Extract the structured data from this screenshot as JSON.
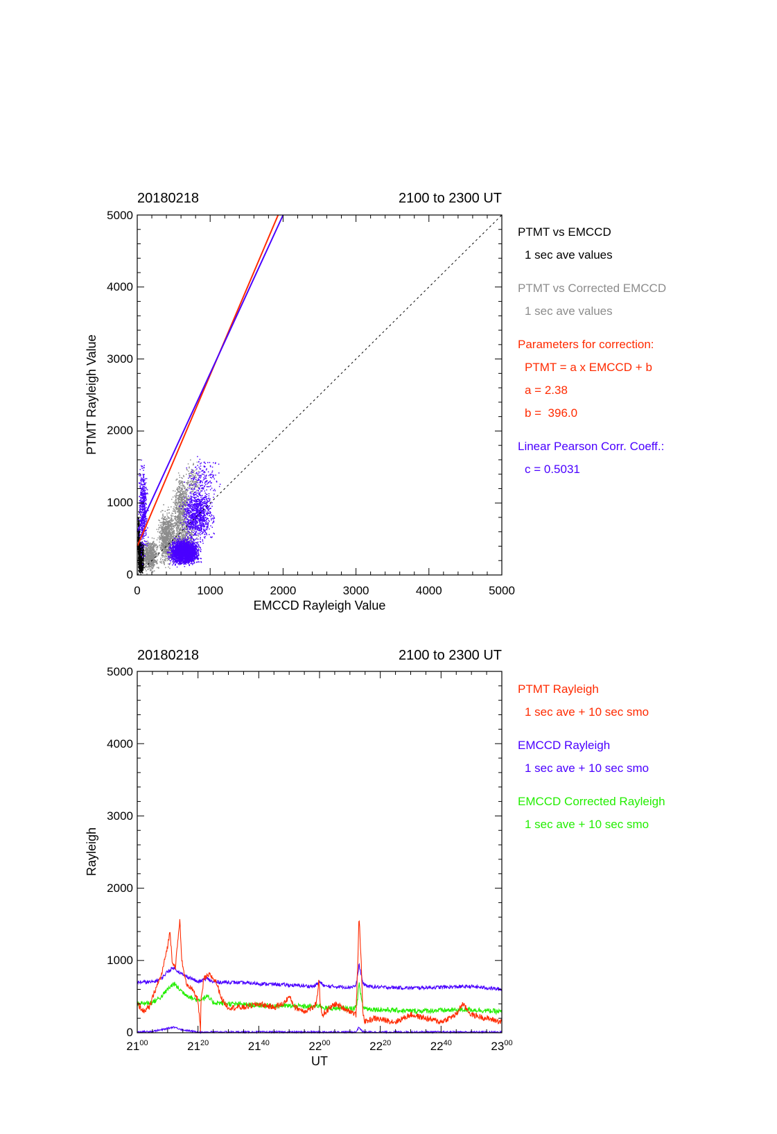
{
  "colors": {
    "black": "#000000",
    "gray": "#8c8c8c",
    "red": "#ff2a00",
    "blue": "#4a00ff",
    "green": "#22ee00"
  },
  "chart_data": [
    {
      "type": "scatter",
      "date": "20180218",
      "time_range": "2100 to 2300 UT",
      "xlabel": "EMCCD Rayleigh Value",
      "ylabel": "PTMT Rayleigh Value",
      "xlim": [
        0,
        5000
      ],
      "ylim": [
        0,
        5000
      ],
      "xticks": [
        "0",
        "1000",
        "2000",
        "3000",
        "4000",
        "5000"
      ],
      "yticks": [
        "0",
        "1000",
        "2000",
        "3000",
        "4000",
        "5000"
      ],
      "legend": [
        {
          "text": "PTMT vs EMCCD",
          "color": "black"
        },
        {
          "text": "1 sec ave values",
          "color": "black"
        },
        {
          "text": "PTMT vs Corrected EMCCD",
          "color": "gray"
        },
        {
          "text": "1 sec ave values",
          "color": "gray"
        },
        {
          "text": "Parameters for correction:",
          "color": "red"
        },
        {
          "text": "PTMT = a x EMCCD + b",
          "color": "red"
        },
        {
          "text": "a = 2.38",
          "color": "red"
        },
        {
          "text": "b =  396.0",
          "color": "red"
        },
        {
          "text": "Linear Pearson Corr. Coeff.:",
          "color": "blue"
        },
        {
          "text": "c = 0.5031",
          "color": "blue"
        }
      ],
      "fit_lines": [
        {
          "color": "red",
          "x": [
            0,
            1932
          ],
          "y": [
            396.0,
            5000
          ]
        },
        {
          "color": "blue",
          "x": [
            0,
            2000
          ],
          "y": [
            600,
            5000
          ]
        },
        {
          "color": "black",
          "dashed": true,
          "x": [
            0,
            5000
          ],
          "y": [
            0,
            5000
          ]
        }
      ],
      "series": [
        {
          "color": "black",
          "clusters": [
            {
              "x": [
                0,
                90
              ],
              "y": [
                0,
                500
              ],
              "n": 1500
            },
            {
              "x": [
                0,
                30
              ],
              "y": [
                100,
                950
              ],
              "n": 250
            }
          ]
        },
        {
          "color": "gray",
          "clusters": [
            {
              "x": [
                50,
                300
              ],
              "y": [
                0,
                550
              ],
              "n": 700
            },
            {
              "x": [
                250,
                550
              ],
              "y": [
                50,
                1000
              ],
              "n": 900
            },
            {
              "x": [
                450,
                750
              ],
              "y": [
                400,
                1500
              ],
              "n": 700
            },
            {
              "x": [
                350,
                900
              ],
              "y": [
                100,
                900
              ],
              "n": 600
            },
            {
              "x": [
                600,
                900
              ],
              "y": [
                1000,
                1650
              ],
              "n": 120
            }
          ]
        },
        {
          "color": "blue",
          "clusters": [
            {
              "x": [
                0,
                150
              ],
              "y": [
                100,
                1700
              ],
              "n": 550
            },
            {
              "x": [
                380,
                900
              ],
              "y": [
                100,
                550
              ],
              "n": 2600
            },
            {
              "x": [
                550,
                1100
              ],
              "y": [
                400,
                1300
              ],
              "n": 1000
            },
            {
              "x": [
                600,
                1200
              ],
              "y": [
                1000,
                1700
              ],
              "n": 180
            }
          ]
        }
      ]
    },
    {
      "type": "line",
      "date": "20180218",
      "time_range": "2100 to 2300 UT",
      "xlabel": "UT",
      "ylabel": "Rayleigh",
      "xlim": [
        0,
        120
      ],
      "ylim": [
        0,
        5000
      ],
      "xticks": [
        {
          "base": "21",
          "sup": "00"
        },
        {
          "base": "21",
          "sup": "20"
        },
        {
          "base": "21",
          "sup": "40"
        },
        {
          "base": "22",
          "sup": "00"
        },
        {
          "base": "22",
          "sup": "20"
        },
        {
          "base": "22",
          "sup": "40"
        },
        {
          "base": "23",
          "sup": "00"
        }
      ],
      "yticks": [
        "0",
        "1000",
        "2000",
        "3000",
        "4000",
        "5000"
      ],
      "legend": [
        {
          "text": "PTMT Rayleigh",
          "color": "red"
        },
        {
          "text": "1 sec ave + 10 sec smo",
          "color": "red"
        },
        {
          "text": "EMCCD Rayleigh",
          "color": "blue"
        },
        {
          "text": "1 sec ave + 10 sec smo",
          "color": "blue"
        },
        {
          "text": "EMCCD Corrected Rayleigh",
          "color": "green"
        },
        {
          "text": "1 sec ave + 10 sec smo",
          "color": "green"
        }
      ],
      "series": [
        {
          "name": "PTMT Rayleigh",
          "color": "red",
          "noise": 40,
          "t": [
            0,
            2,
            4,
            6,
            8,
            10,
            10.8,
            11.5,
            12.5,
            13,
            14,
            14.7,
            15,
            16,
            18,
            20,
            20.8,
            21,
            22,
            24,
            26,
            28,
            30,
            35,
            40,
            45,
            48,
            50,
            52,
            55,
            58,
            59,
            59.8,
            60.3,
            61,
            65,
            70,
            72,
            72.6,
            73,
            73.7,
            74.3,
            75,
            78,
            85,
            90,
            95,
            100,
            105,
            107,
            110,
            115,
            120
          ],
          "y": [
            400,
            300,
            350,
            600,
            800,
            1200,
            1400,
            1000,
            900,
            1100,
            1550,
            1000,
            900,
            700,
            600,
            450,
            40,
            450,
            750,
            800,
            700,
            450,
            350,
            350,
            400,
            350,
            400,
            500,
            350,
            300,
            350,
            400,
            750,
            350,
            250,
            400,
            300,
            250,
            1000,
            1600,
            1000,
            250,
            150,
            200,
            150,
            250,
            200,
            150,
            250,
            400,
            250,
            200,
            150
          ]
        },
        {
          "name": "EMCCD Rayleigh",
          "color": "blue",
          "noise": 25,
          "t": [
            0,
            5,
            8,
            10,
            12,
            15,
            18,
            20,
            23,
            25,
            30,
            40,
            50,
            58,
            60,
            62,
            65,
            70,
            72,
            72.6,
            73,
            73.7,
            74.3,
            76,
            80,
            90,
            100,
            110,
            120
          ],
          "y": [
            700,
            700,
            750,
            850,
            900,
            800,
            750,
            700,
            750,
            700,
            700,
            680,
            660,
            640,
            700,
            640,
            640,
            630,
            650,
            800,
            950,
            800,
            680,
            640,
            630,
            620,
            630,
            640,
            600
          ]
        },
        {
          "name": "EMCCD Corrected Rayleigh",
          "color": "green",
          "noise": 35,
          "t": [
            0,
            5,
            8,
            10,
            12,
            15,
            18,
            20,
            23,
            25,
            30,
            40,
            50,
            58,
            60,
            62,
            65,
            70,
            72,
            72.6,
            73,
            73.7,
            74.3,
            76,
            80,
            90,
            100,
            110,
            120
          ],
          "y": [
            400,
            420,
            500,
            600,
            680,
            560,
            480,
            450,
            500,
            420,
            400,
            380,
            370,
            360,
            380,
            340,
            340,
            330,
            350,
            500,
            680,
            500,
            350,
            330,
            320,
            300,
            310,
            320,
            290
          ]
        },
        {
          "name": "EMCCD Rayleigh low",
          "color": "blue",
          "noise": 12,
          "t": [
            0,
            5,
            8,
            10,
            12,
            15,
            18,
            20,
            40,
            60,
            70,
            72,
            73,
            74,
            75,
            80,
            100,
            120
          ],
          "y": [
            10,
            20,
            40,
            60,
            80,
            40,
            20,
            10,
            10,
            10,
            10,
            10,
            80,
            20,
            10,
            10,
            10,
            10
          ]
        }
      ]
    }
  ]
}
